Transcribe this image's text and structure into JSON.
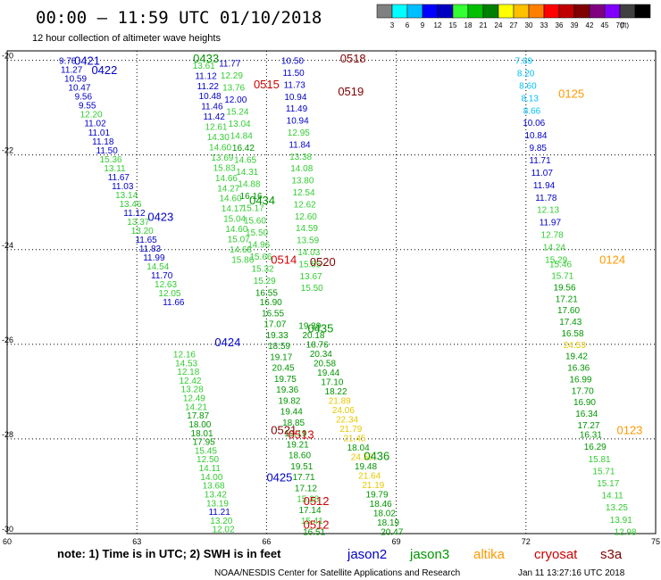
{
  "header": {
    "title": "00:00 – 11:59 UTC 01/10/2018",
    "subtitle": "12 hour collection of altimeter wave heights"
  },
  "colorbar": {
    "colors": [
      "#808080",
      "#00ffff",
      "#00bfff",
      "#0000ff",
      "#0000c0",
      "#33ff33",
      "#00c000",
      "#008000",
      "#ffff00",
      "#ffc000",
      "#ff8000",
      "#ff0000",
      "#c00000",
      "#800000",
      "#800080",
      "#8000ff",
      "#404040",
      "#000000"
    ],
    "labels": [
      "3",
      "6",
      "9",
      "12",
      "15",
      "18",
      "21",
      "24",
      "27",
      "30",
      "33",
      "36",
      "39",
      "42",
      "45",
      "70",
      "(ft)"
    ]
  },
  "axes": {
    "lat_labels": [
      "-20",
      "-22",
      "-24",
      "-26",
      "-28",
      "-30"
    ],
    "lon_labels": [
      "60",
      "63",
      "66",
      "69",
      "72",
      "75"
    ]
  },
  "footer": {
    "note": "note: 1) Time is in UTC; 2) SWH is in feet",
    "credit": "NOAA/NESDIS Center for Satellite Applications and Research",
    "timestamp": "Jan 11 13:27:16 UTC 2018",
    "legend": [
      {
        "name": "jason2",
        "color": "#0000c8"
      },
      {
        "name": "jason3",
        "color": "#009600"
      },
      {
        "name": "altika",
        "color": "#ff9900"
      },
      {
        "name": "cryosat",
        "color": "#d00000"
      },
      {
        "name": "s3a",
        "color": "#800000"
      }
    ]
  },
  "passes": [
    {
      "label": "0421",
      "lon": 61.85,
      "lat": -20.0,
      "color": "#0000c8"
    },
    {
      "label": "0422",
      "lon": 62.25,
      "lat": -20.2,
      "color": "#0000c8"
    },
    {
      "label": "0433",
      "lon": 64.6,
      "lat": -19.95,
      "color": "#009600"
    },
    {
      "label": "0518",
      "lon": 68.0,
      "lat": -19.95,
      "color": "#800000"
    },
    {
      "label": "0515",
      "lon": 66.0,
      "lat": -20.5,
      "color": "#d00000"
    },
    {
      "label": "0519",
      "lon": 67.95,
      "lat": -20.65,
      "color": "#800000"
    },
    {
      "label": "0125",
      "lon": 73.05,
      "lat": -20.7,
      "color": "#ff9900"
    },
    {
      "label": "0434",
      "lon": 65.9,
      "lat": -22.95,
      "color": "#009600"
    },
    {
      "label": "0423",
      "lon": 63.55,
      "lat": -23.3,
      "color": "#0000c8"
    },
    {
      "label": "0514",
      "lon": 66.4,
      "lat": -24.2,
      "color": "#d00000"
    },
    {
      "label": "0520",
      "lon": 67.3,
      "lat": -24.25,
      "color": "#800000"
    },
    {
      "label": "0124",
      "lon": 74.0,
      "lat": -24.2,
      "color": "#ff9900"
    },
    {
      "label": "0435",
      "lon": 67.25,
      "lat": -25.65,
      "color": "#009600"
    },
    {
      "label": "0424",
      "lon": 65.1,
      "lat": -25.95,
      "color": "#0000c8"
    },
    {
      "label": "0521",
      "lon": 66.4,
      "lat": -27.8,
      "color": "#800000"
    },
    {
      "label": "0513",
      "lon": 66.8,
      "lat": -27.9,
      "color": "#d00000"
    },
    {
      "label": "0123",
      "lon": 74.4,
      "lat": -27.8,
      "color": "#ff9900"
    },
    {
      "label": "0436",
      "lon": 68.55,
      "lat": -28.35,
      "color": "#009600"
    },
    {
      "label": "0425",
      "lon": 66.3,
      "lat": -28.8,
      "color": "#0000c8"
    },
    {
      "label": "0512",
      "lon": 67.15,
      "lat": -29.3,
      "color": "#d00000"
    },
    {
      "label": "0512",
      "lon": 67.15,
      "lat": -29.8,
      "color": "#d00000"
    }
  ],
  "tracks": [
    {
      "name": "jason2-0421",
      "start": [
        61.4,
        -20.0
      ],
      "end": [
        63.85,
        -25.1
      ],
      "values": [
        {
          "v": "9.78",
          "c": "#0000c8"
        },
        {
          "v": "11.27",
          "c": "#0000c8"
        },
        {
          "v": "10.59",
          "c": "#0000c8"
        },
        {
          "v": "10.47",
          "c": "#0000c8"
        },
        {
          "v": "9.56",
          "c": "#0000c8"
        },
        {
          "v": "9.55",
          "c": "#0000c8"
        },
        {
          "v": "12.20",
          "c": "#33cc33"
        },
        {
          "v": "11.02",
          "c": "#0000c8"
        },
        {
          "v": "11.01",
          "c": "#0000c8"
        },
        {
          "v": "11.18",
          "c": "#0000c8"
        },
        {
          "v": "11.50",
          "c": "#0000c8"
        },
        {
          "v": "15.36",
          "c": "#33cc33"
        },
        {
          "v": "13.11",
          "c": "#33cc33"
        },
        {
          "v": "11.67",
          "c": "#0000c8"
        },
        {
          "v": "11.03",
          "c": "#0000c8"
        },
        {
          "v": "13.14",
          "c": "#33cc33"
        },
        {
          "v": "13.46",
          "c": "#33cc33"
        },
        {
          "v": "11.12",
          "c": "#0000c8"
        },
        {
          "v": "13.37",
          "c": "#33cc33"
        },
        {
          "v": "13.20",
          "c": "#33cc33"
        },
        {
          "v": "11.65",
          "c": "#0000c8"
        },
        {
          "v": "11.83",
          "c": "#0000c8"
        },
        {
          "v": "11.99",
          "c": "#0000c8"
        },
        {
          "v": "14.54",
          "c": "#33cc33"
        },
        {
          "v": "11.70",
          "c": "#0000c8"
        },
        {
          "v": "12.63",
          "c": "#33cc33"
        },
        {
          "v": "12.05",
          "c": "#33cc33"
        },
        {
          "v": "11.66",
          "c": "#0000c8"
        }
      ]
    },
    {
      "name": "jason2-0424",
      "start": [
        64.1,
        -26.2
      ],
      "end": [
        65.0,
        -29.9
      ],
      "values": [
        {
          "v": "12.16",
          "c": "#33cc33"
        },
        {
          "v": "14.53",
          "c": "#33cc33"
        },
        {
          "v": "12.18",
          "c": "#33cc33"
        },
        {
          "v": "12.42",
          "c": "#33cc33"
        },
        {
          "v": "13.28",
          "c": "#33cc33"
        },
        {
          "v": "12.49",
          "c": "#33cc33"
        },
        {
          "v": "14.21",
          "c": "#33cc33"
        },
        {
          "v": "17.87",
          "c": "#009600"
        },
        {
          "v": "18.00",
          "c": "#009600"
        },
        {
          "v": "18.01",
          "c": "#009600"
        },
        {
          "v": "17.95",
          "c": "#009600"
        },
        {
          "v": "15.45",
          "c": "#33cc33"
        },
        {
          "v": "12.50",
          "c": "#33cc33"
        },
        {
          "v": "14.11",
          "c": "#33cc33"
        },
        {
          "v": "14.00",
          "c": "#33cc33"
        },
        {
          "v": "13.68",
          "c": "#33cc33"
        },
        {
          "v": "13.42",
          "c": "#33cc33"
        },
        {
          "v": "13.19",
          "c": "#33cc33"
        },
        {
          "v": "11.21",
          "c": "#0000c8"
        },
        {
          "v": "13.20",
          "c": "#33cc33"
        },
        {
          "v": "12.02",
          "c": "#33cc33"
        }
      ]
    },
    {
      "name": "jason3-0433",
      "start": [
        64.55,
        -20.1
      ],
      "end": [
        65.45,
        -24.2
      ],
      "values": [
        {
          "v": "13.61",
          "c": "#33cc33"
        },
        {
          "v": "11.12",
          "c": "#0000c8"
        },
        {
          "v": "11.22",
          "c": "#0000c8"
        },
        {
          "v": "10.48",
          "c": "#0000c8"
        },
        {
          "v": "11.46",
          "c": "#0000c8"
        },
        {
          "v": "11.42",
          "c": "#0000c8"
        },
        {
          "v": "12.61",
          "c": "#33cc33"
        },
        {
          "v": "14.30",
          "c": "#33cc33"
        },
        {
          "v": "14.60",
          "c": "#33cc33"
        },
        {
          "v": "13.69",
          "c": "#33cc33"
        },
        {
          "v": "15.83",
          "c": "#33cc33"
        },
        {
          "v": "14.66",
          "c": "#33cc33"
        },
        {
          "v": "14.27",
          "c": "#33cc33"
        },
        {
          "v": "14.60",
          "c": "#33cc33"
        },
        {
          "v": "14.17",
          "c": "#33cc33"
        },
        {
          "v": "15.04",
          "c": "#33cc33"
        },
        {
          "v": "14.60",
          "c": "#33cc33"
        },
        {
          "v": "15.07",
          "c": "#33cc33"
        },
        {
          "v": "14.68",
          "c": "#33cc33"
        },
        {
          "v": "15.86",
          "c": "#33cc33"
        }
      ]
    },
    {
      "name": "jason3-0433b",
      "start": [
        65.15,
        -20.05
      ],
      "end": [
        66.0,
        -24.9
      ],
      "values": [
        {
          "v": "11.77",
          "c": "#0000c8"
        },
        {
          "v": "12.29",
          "c": "#33cc33"
        },
        {
          "v": "13.76",
          "c": "#33cc33"
        },
        {
          "v": "12.00",
          "c": "#0000c8"
        },
        {
          "v": "15.24",
          "c": "#33cc33"
        },
        {
          "v": "13.04",
          "c": "#33cc33"
        },
        {
          "v": "14.84",
          "c": "#33cc33"
        },
        {
          "v": "16.42",
          "c": "#009600"
        },
        {
          "v": "14.65",
          "c": "#33cc33"
        },
        {
          "v": "14.31",
          "c": "#33cc33"
        },
        {
          "v": "14.88",
          "c": "#33cc33"
        },
        {
          "v": "16.16",
          "c": "#009600"
        },
        {
          "v": "15.17",
          "c": "#33cc33"
        },
        {
          "v": "15.60",
          "c": "#33cc33"
        },
        {
          "v": "15.50",
          "c": "#33cc33"
        },
        {
          "v": "14.96",
          "c": "#33cc33"
        },
        {
          "v": "15.66",
          "c": "#33cc33"
        },
        {
          "v": "15.32",
          "c": "#33cc33"
        },
        {
          "v": "15.29",
          "c": "#33cc33"
        },
        {
          "v": "16.55",
          "c": "#009600"
        }
      ]
    },
    {
      "name": "s3a-0518",
      "start": [
        66.6,
        -20.0
      ],
      "end": [
        67.05,
        -24.8
      ],
      "values": [
        {
          "v": "10.50",
          "c": "#0000c8"
        },
        {
          "v": "11.50",
          "c": "#0000c8"
        },
        {
          "v": "11.73",
          "c": "#0000c8"
        },
        {
          "v": "10.94",
          "c": "#0000c8"
        },
        {
          "v": "11.49",
          "c": "#0000c8"
        },
        {
          "v": "10.94",
          "c": "#0000c8"
        },
        {
          "v": "12.95",
          "c": "#33cc33"
        },
        {
          "v": "11.84",
          "c": "#0000c8"
        },
        {
          "v": "13.38",
          "c": "#33cc33"
        },
        {
          "v": "14.08",
          "c": "#33cc33"
        },
        {
          "v": "13.80",
          "c": "#33cc33"
        },
        {
          "v": "12.54",
          "c": "#33cc33"
        },
        {
          "v": "12.62",
          "c": "#33cc33"
        },
        {
          "v": "12.60",
          "c": "#33cc33"
        },
        {
          "v": "14.59",
          "c": "#33cc33"
        },
        {
          "v": "13.59",
          "c": "#33cc33"
        },
        {
          "v": "14.03",
          "c": "#33cc33"
        },
        {
          "v": "15.55",
          "c": "#33cc33"
        },
        {
          "v": "13.67",
          "c": "#33cc33"
        },
        {
          "v": "15.50",
          "c": "#33cc33"
        }
      ]
    },
    {
      "name": "mid-0435",
      "start": [
        66.1,
        -25.1
      ],
      "end": [
        67.1,
        -29.95
      ],
      "values": [
        {
          "v": "16.90",
          "c": "#009600"
        },
        {
          "v": "16.55",
          "c": "#009600"
        },
        {
          "v": "17.07",
          "c": "#009600"
        },
        {
          "v": "19.33",
          "c": "#009600"
        },
        {
          "v": "18.59",
          "c": "#009600"
        },
        {
          "v": "19.17",
          "c": "#009600"
        },
        {
          "v": "20.45",
          "c": "#009600"
        },
        {
          "v": "19.75",
          "c": "#009600"
        },
        {
          "v": "19.36",
          "c": "#009600"
        },
        {
          "v": "19.82",
          "c": "#009600"
        },
        {
          "v": "19.44",
          "c": "#009600"
        },
        {
          "v": "18.85",
          "c": "#009600"
        },
        {
          "v": "19.19",
          "c": "#009600"
        },
        {
          "v": "19.21",
          "c": "#009600"
        },
        {
          "v": "18.60",
          "c": "#009600"
        },
        {
          "v": "19.51",
          "c": "#009600"
        },
        {
          "v": "17.71",
          "c": "#009600"
        },
        {
          "v": "17.12",
          "c": "#009600"
        },
        {
          "v": "15.28",
          "c": "#33cc33"
        },
        {
          "v": "17.14",
          "c": "#009600"
        },
        {
          "v": "15.41",
          "c": "#33cc33"
        },
        {
          "v": "16.51",
          "c": "#009600"
        }
      ]
    },
    {
      "name": "s3a-0520",
      "start": [
        67.0,
        -25.6
      ],
      "end": [
        68.9,
        -29.95
      ],
      "values": [
        {
          "v": "19.39",
          "c": "#009600"
        },
        {
          "v": "20.18",
          "c": "#009600"
        },
        {
          "v": "18.76",
          "c": "#009600"
        },
        {
          "v": "20.34",
          "c": "#009600"
        },
        {
          "v": "20.58",
          "c": "#009600"
        },
        {
          "v": "19.44",
          "c": "#009600"
        },
        {
          "v": "17.10",
          "c": "#009600"
        },
        {
          "v": "18.22",
          "c": "#009600"
        },
        {
          "v": "21.89",
          "c": "#e6c800"
        },
        {
          "v": "24.06",
          "c": "#e6c800"
        },
        {
          "v": "22.34",
          "c": "#e6c800"
        },
        {
          "v": "21.79",
          "c": "#e6c800"
        },
        {
          "v": "21.45",
          "c": "#e6c800"
        },
        {
          "v": "18.04",
          "c": "#009600"
        },
        {
          "v": "24.58",
          "c": "#e6c800"
        },
        {
          "v": "19.48",
          "c": "#009600"
        },
        {
          "v": "21.64",
          "c": "#e6c800"
        },
        {
          "v": "21.19",
          "c": "#e6c800"
        },
        {
          "v": "19.79",
          "c": "#009600"
        },
        {
          "v": "18.46",
          "c": "#009600"
        },
        {
          "v": "18.02",
          "c": "#009600"
        },
        {
          "v": "18.19",
          "c": "#009600"
        },
        {
          "v": "20.47",
          "c": "#009600"
        }
      ]
    },
    {
      "name": "altika-0125",
      "start": [
        71.95,
        -20.0
      ],
      "end": [
        72.7,
        -24.2
      ],
      "values": [
        {
          "v": "7.89",
          "c": "#00bfff"
        },
        {
          "v": "8.20",
          "c": "#00bfff"
        },
        {
          "v": "8.60",
          "c": "#00bfff"
        },
        {
          "v": "8.13",
          "c": "#00bfff"
        },
        {
          "v": "8.66",
          "c": "#00bfff"
        },
        {
          "v": "10.06",
          "c": "#0000c8"
        },
        {
          "v": "10.84",
          "c": "#0000c8"
        },
        {
          "v": "9.85",
          "c": "#0000c8"
        },
        {
          "v": "11.71",
          "c": "#0000c8"
        },
        {
          "v": "11.07",
          "c": "#0000c8"
        },
        {
          "v": "11.94",
          "c": "#0000c8"
        },
        {
          "v": "11.78",
          "c": "#0000c8"
        },
        {
          "v": "12.13",
          "c": "#33cc33"
        },
        {
          "v": "11.97",
          "c": "#0000c8"
        },
        {
          "v": "12.78",
          "c": "#33cc33"
        },
        {
          "v": "14.24",
          "c": "#33cc33"
        },
        {
          "v": "15.29",
          "c": "#33cc33"
        }
      ]
    },
    {
      "name": "altika-0124",
      "start": [
        72.8,
        -24.3
      ],
      "end": [
        73.45,
        -27.7
      ],
      "values": [
        {
          "v": "15.46",
          "c": "#33cc33"
        },
        {
          "v": "15.71",
          "c": "#33cc33"
        },
        {
          "v": "19.56",
          "c": "#009600"
        },
        {
          "v": "17.21",
          "c": "#009600"
        },
        {
          "v": "17.60",
          "c": "#009600"
        },
        {
          "v": "17.43",
          "c": "#009600"
        },
        {
          "v": "16.58",
          "c": "#009600"
        },
        {
          "v": "24.53",
          "c": "#e6c800"
        },
        {
          "v": "19.42",
          "c": "#009600"
        },
        {
          "v": "16.36",
          "c": "#009600"
        },
        {
          "v": "16.99",
          "c": "#009600"
        },
        {
          "v": "17.70",
          "c": "#009600"
        },
        {
          "v": "16.90",
          "c": "#009600"
        },
        {
          "v": "16.34",
          "c": "#009600"
        },
        {
          "v": "17.27",
          "c": "#009600"
        }
      ]
    },
    {
      "name": "altika-0123",
      "start": [
        73.5,
        -27.9
      ],
      "end": [
        74.3,
        -29.95
      ],
      "values": [
        {
          "v": "16.31",
          "c": "#009600"
        },
        {
          "v": "16.29",
          "c": "#009600"
        },
        {
          "v": "15.81",
          "c": "#33cc33"
        },
        {
          "v": "15.71",
          "c": "#33cc33"
        },
        {
          "v": "15.17",
          "c": "#33cc33"
        },
        {
          "v": "14.11",
          "c": "#33cc33"
        },
        {
          "v": "13.25",
          "c": "#33cc33"
        },
        {
          "v": "13.91",
          "c": "#33cc33"
        },
        {
          "v": "12.98",
          "c": "#33cc33"
        }
      ]
    }
  ]
}
